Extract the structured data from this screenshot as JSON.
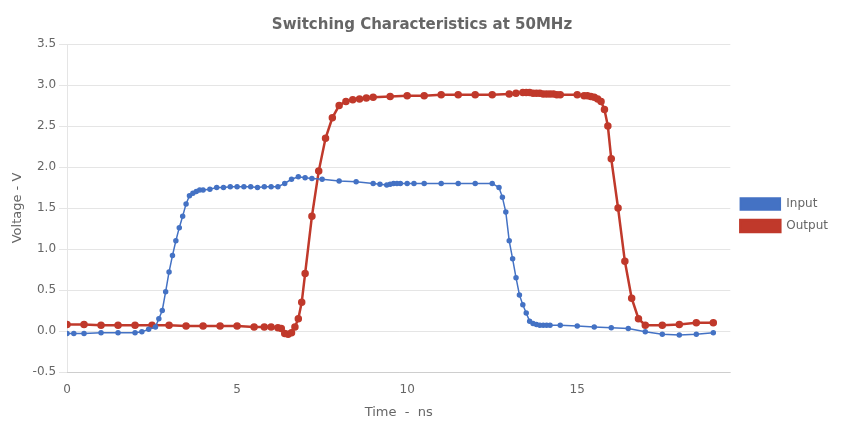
{
  "chart_data": {
    "type": "line",
    "title": "Switching Characteristics at 50MHz",
    "xlabel": "Time  -  ns",
    "ylabel": "Voltage - V",
    "xlim": [
      0,
      19.5
    ],
    "ylim": [
      -0.5,
      3.5
    ],
    "xticks": [
      0,
      5,
      10,
      15
    ],
    "yticks": [
      -0.5,
      {
        "value": 0,
        "label": "0.0"
      },
      0.5,
      {
        "value": 1.0,
        "label": "1.0"
      },
      1.5,
      {
        "value": 2.0,
        "label": "2.0"
      },
      2.5,
      {
        "value": 3.0,
        "label": "3.0"
      },
      3.5
    ],
    "grid": "y",
    "legend": "right",
    "series": [
      {
        "name": "Input",
        "color": "#4472C4",
        "marker": "circle",
        "line_style": "solid",
        "x": [
          0,
          0.2,
          0.5,
          1.0,
          1.5,
          2.0,
          2.2,
          2.4,
          2.6,
          2.7,
          2.8,
          2.9,
          3.0,
          3.1,
          3.2,
          3.3,
          3.4,
          3.5,
          3.6,
          3.7,
          3.8,
          3.9,
          4.0,
          4.2,
          4.4,
          4.6,
          4.8,
          5.0,
          5.2,
          5.4,
          5.6,
          5.8,
          6.0,
          6.2,
          6.4,
          6.6,
          6.8,
          7.0,
          7.2,
          7.5,
          8.0,
          8.5,
          9.0,
          9.2,
          9.4,
          9.5,
          9.6,
          9.7,
          9.8,
          10.0,
          10.2,
          10.5,
          11.0,
          11.5,
          12.0,
          12.5,
          12.7,
          12.8,
          12.9,
          13.0,
          13.1,
          13.2,
          13.3,
          13.4,
          13.5,
          13.6,
          13.7,
          13.8,
          13.9,
          14.0,
          14.1,
          14.2,
          14.5,
          15.0,
          15.5,
          16.0,
          16.5,
          17.0,
          17.5,
          18.0,
          18.5,
          19.0
        ],
        "values": [
          -0.03,
          -0.03,
          -0.03,
          -0.02,
          -0.02,
          -0.02,
          -0.01,
          0.02,
          0.05,
          0.15,
          0.25,
          0.48,
          0.72,
          0.92,
          1.1,
          1.26,
          1.4,
          1.55,
          1.65,
          1.68,
          1.7,
          1.72,
          1.72,
          1.73,
          1.75,
          1.75,
          1.76,
          1.76,
          1.76,
          1.76,
          1.75,
          1.76,
          1.76,
          1.76,
          1.8,
          1.85,
          1.88,
          1.87,
          1.86,
          1.85,
          1.83,
          1.82,
          1.8,
          1.79,
          1.78,
          1.79,
          1.8,
          1.8,
          1.8,
          1.8,
          1.8,
          1.8,
          1.8,
          1.8,
          1.8,
          1.8,
          1.75,
          1.63,
          1.45,
          1.1,
          0.88,
          0.65,
          0.44,
          0.32,
          0.22,
          0.12,
          0.09,
          0.08,
          0.07,
          0.07,
          0.07,
          0.07,
          0.07,
          0.06,
          0.05,
          0.04,
          0.03,
          -0.01,
          -0.04,
          -0.05,
          -0.04,
          -0.02
        ]
      },
      {
        "name": "Output",
        "color": "#C0392B",
        "marker": "circle",
        "line_style": "solid",
        "x": [
          0,
          0.5,
          1.0,
          1.5,
          2.0,
          2.5,
          3.0,
          3.5,
          4.0,
          4.5,
          5.0,
          5.5,
          5.8,
          6.0,
          6.2,
          6.3,
          6.4,
          6.5,
          6.6,
          6.7,
          6.8,
          6.9,
          7.0,
          7.2,
          7.4,
          7.6,
          7.8,
          8.0,
          8.2,
          8.4,
          8.6,
          8.8,
          9.0,
          9.5,
          10.0,
          10.5,
          11.0,
          11.5,
          12.0,
          12.5,
          13.0,
          13.2,
          13.4,
          13.5,
          13.6,
          13.7,
          13.8,
          13.9,
          14.0,
          14.1,
          14.2,
          14.3,
          14.4,
          14.5,
          15.0,
          15.2,
          15.3,
          15.4,
          15.5,
          15.6,
          15.7,
          15.8,
          15.9,
          16.0,
          16.2,
          16.4,
          16.6,
          16.8,
          17.0,
          17.5,
          18.0,
          18.5,
          19.0
        ],
        "values": [
          0.08,
          0.08,
          0.07,
          0.07,
          0.07,
          0.07,
          0.07,
          0.06,
          0.06,
          0.06,
          0.06,
          0.05,
          0.05,
          0.05,
          0.04,
          0.03,
          -0.03,
          -0.04,
          -0.02,
          0.05,
          0.15,
          0.35,
          0.7,
          1.4,
          1.95,
          2.35,
          2.6,
          2.75,
          2.8,
          2.82,
          2.83,
          2.84,
          2.85,
          2.86,
          2.87,
          2.87,
          2.88,
          2.88,
          2.88,
          2.88,
          2.89,
          2.9,
          2.91,
          2.91,
          2.91,
          2.9,
          2.9,
          2.9,
          2.89,
          2.89,
          2.89,
          2.89,
          2.88,
          2.88,
          2.88,
          2.87,
          2.87,
          2.86,
          2.85,
          2.83,
          2.8,
          2.7,
          2.5,
          2.1,
          1.5,
          0.85,
          0.4,
          0.15,
          0.07,
          0.07,
          0.08,
          0.1,
          0.1
        ]
      }
    ]
  }
}
